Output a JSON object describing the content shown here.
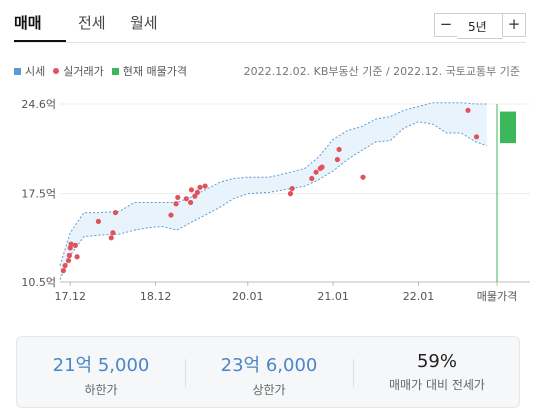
{
  "tabs": [
    {
      "label": "매매"
    },
    {
      "label": "전세"
    },
    {
      "label": "월세"
    }
  ],
  "period": {
    "minus": "−",
    "label": "5년",
    "plus": "+"
  },
  "legend": [
    {
      "label": "시세",
      "color": "#5b9bd5",
      "shape": "square"
    },
    {
      "label": "실거래가",
      "color": "#e0525c",
      "shape": "dot"
    },
    {
      "label": "현재 매물가격",
      "color": "#3cb85c",
      "shape": "square"
    }
  ],
  "source_note": "2022.12.02. KB부동산 기준 / 2022.12. 국토교통부 기준",
  "chart_data": {
    "type": "area",
    "unit": "억",
    "y_ticks": [
      {
        "label": "24.6억",
        "value": 24.6
      },
      {
        "label": "17.5억",
        "value": 17.5
      },
      {
        "label": "10.5억",
        "value": 10.5
      }
    ],
    "ylim": [
      10.5,
      24.6
    ],
    "x_ticks": [
      {
        "label": "17.12",
        "value": 2017.92
      },
      {
        "label": "18.12",
        "value": 2018.92
      },
      {
        "label": "20.01",
        "value": 2020.0
      },
      {
        "label": "21.01",
        "value": 2021.0
      },
      {
        "label": "22.01",
        "value": 2022.0
      },
      {
        "label": "매물가격",
        "value": 2022.92
      }
    ],
    "xlim": [
      2017.8,
      2022.92
    ],
    "series": [
      {
        "name": "시세",
        "color": "#5b9bd5",
        "x": [
          2017.8,
          2017.92,
          2018.08,
          2018.25,
          2018.5,
          2018.67,
          2018.83,
          2019.0,
          2019.17,
          2019.33,
          2019.5,
          2019.67,
          2019.83,
          2020.0,
          2020.25,
          2020.5,
          2020.67,
          2020.83,
          2021.0,
          2021.17,
          2021.33,
          2021.5,
          2021.67,
          2021.83,
          2022.0,
          2022.17,
          2022.33,
          2022.5,
          2022.67,
          2022.8
        ],
        "upper": [
          11.8,
          14.4,
          16.0,
          16.0,
          16.1,
          16.8,
          16.8,
          16.8,
          16.8,
          17.2,
          17.8,
          18.4,
          18.7,
          18.8,
          18.8,
          19.2,
          19.5,
          20.4,
          21.8,
          22.5,
          22.8,
          23.4,
          23.6,
          24.1,
          24.4,
          24.7,
          24.7,
          24.7,
          24.6,
          24.6
        ],
        "lower": [
          10.7,
          12.6,
          14.1,
          14.2,
          14.3,
          14.6,
          14.8,
          14.9,
          14.6,
          15.2,
          15.8,
          16.4,
          17.1,
          17.5,
          17.6,
          17.9,
          18.1,
          18.6,
          19.3,
          20.2,
          20.9,
          21.6,
          21.7,
          22.7,
          23.2,
          23.0,
          22.3,
          22.3,
          21.6,
          21.3
        ]
      },
      {
        "name": "실거래가",
        "color": "#e0525c",
        "x": [
          2017.84,
          2017.86,
          2017.9,
          2017.91,
          2017.92,
          2017.93,
          2017.98,
          2018.0,
          2018.25,
          2018.4,
          2018.42,
          2018.45,
          2019.1,
          2019.16,
          2019.18,
          2019.28,
          2019.33,
          2019.34,
          2019.38,
          2019.41,
          2019.44,
          2019.5,
          2020.5,
          2020.52,
          2020.75,
          2020.8,
          2020.85,
          2020.87,
          2021.05,
          2021.07,
          2021.35,
          2022.58,
          2022.68
        ],
        "values": [
          11.4,
          11.8,
          12.2,
          12.6,
          13.2,
          13.5,
          13.4,
          12.5,
          15.3,
          14.0,
          14.4,
          16.0,
          15.8,
          16.7,
          17.2,
          17.1,
          16.8,
          17.8,
          17.3,
          17.6,
          18.0,
          18.1,
          17.5,
          17.9,
          18.7,
          19.2,
          19.5,
          19.6,
          20.2,
          21.0,
          18.8,
          24.1,
          22.0
        ]
      },
      {
        "name": "현재 매물가격",
        "color": "#3cb85c",
        "x_label": "매물가격",
        "range": [
          21.5,
          24.0
        ]
      }
    ]
  },
  "summary": [
    {
      "value": "21억 5,000",
      "label": "하한가"
    },
    {
      "value": "23억 6,000",
      "label": "상한가"
    },
    {
      "value": "59%",
      "label": "매매가 대비 전세가"
    }
  ]
}
